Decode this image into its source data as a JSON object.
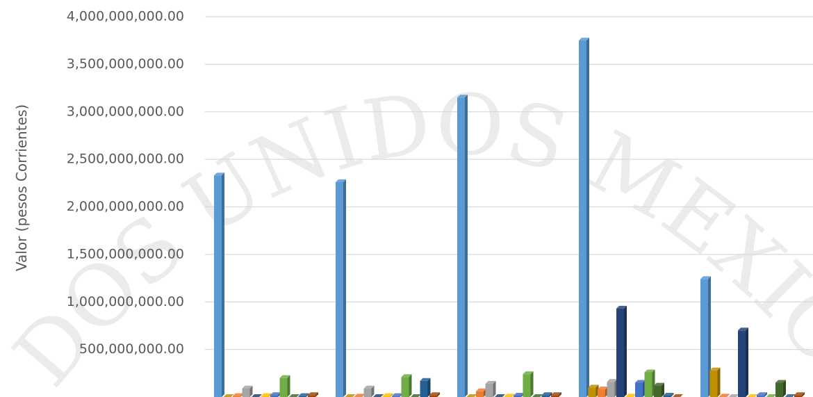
{
  "watermark": "ESTADOS UNIDOS MEXICANOS",
  "chart_data": {
    "type": "bar3d",
    "y_label": "Valor (pesos Corrientes)",
    "categories": [
      null,
      null,
      null,
      null,
      null
    ],
    "ylim": [
      0,
      4000000000
    ],
    "yticks": [
      {
        "value": 500000000,
        "label": "500,000,000.00"
      },
      {
        "value": 1000000000,
        "label": "1,000,000,000.00"
      },
      {
        "value": 1500000000,
        "label": "1,500,000,000.00"
      },
      {
        "value": 2000000000,
        "label": "2,000,000,000.00"
      },
      {
        "value": 2500000000,
        "label": "2,500,000,000.00"
      },
      {
        "value": 3000000000,
        "label": "3,000,000,000.00"
      },
      {
        "value": 3500000000,
        "label": "3,500,000,000.00"
      },
      {
        "value": 4000000000,
        "label": "4,000,000,000.00"
      }
    ],
    "grid": true,
    "series": [
      {
        "color": "#5b9bd5",
        "values": [
          2330000000,
          2260000000,
          3150000000,
          3750000000,
          1240000000
        ]
      },
      {
        "color": "#bf9000",
        "values": [
          0,
          0,
          0,
          100000000,
          280000000
        ]
      },
      {
        "color": "#ed7d31",
        "values": [
          10000000,
          5000000,
          60000000,
          80000000,
          5000000
        ]
      },
      {
        "color": "#a5a5a5",
        "values": [
          90000000,
          90000000,
          140000000,
          160000000,
          0
        ]
      },
      {
        "color": "#264478",
        "values": [
          0,
          0,
          0,
          930000000,
          700000000
        ]
      },
      {
        "color": "#ffc000",
        "values": [
          10000000,
          10000000,
          5000000,
          5000000,
          0
        ]
      },
      {
        "color": "#4472c4",
        "values": [
          20000000,
          10000000,
          15000000,
          150000000,
          20000000
        ]
      },
      {
        "color": "#70ad47",
        "values": [
          200000000,
          210000000,
          240000000,
          260000000,
          0
        ]
      },
      {
        "color": "#43682b",
        "values": [
          0,
          0,
          0,
          120000000,
          150000000
        ]
      },
      {
        "color": "#255e91",
        "values": [
          10000000,
          170000000,
          20000000,
          15000000,
          0
        ]
      },
      {
        "color": "#9e480e",
        "values": [
          20000000,
          20000000,
          20000000,
          0,
          20000000
        ]
      }
    ]
  }
}
